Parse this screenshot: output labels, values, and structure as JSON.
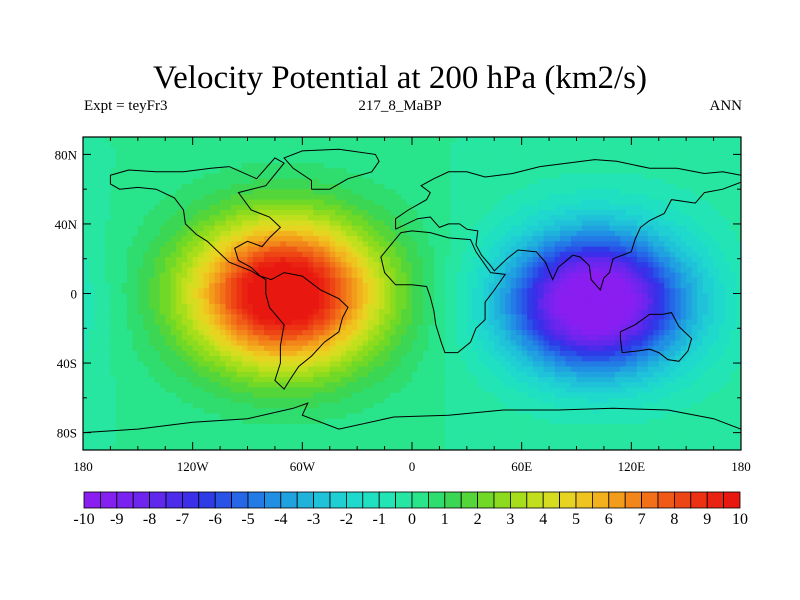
{
  "chart_data": {
    "type": "heatmap",
    "title": "Velocity Potential at 200 hPa (km2/s)",
    "subtitle_left": "Expt = teyFr3",
    "subtitle_center": "217_8_MaBP",
    "subtitle_right": "ANN",
    "x_range": [
      -180,
      180
    ],
    "y_range": [
      -90,
      90
    ],
    "x_ticks": [
      {
        "value": -180,
        "label": "180"
      },
      {
        "value": -120,
        "label": "120W"
      },
      {
        "value": -60,
        "label": "60W"
      },
      {
        "value": 0,
        "label": "0"
      },
      {
        "value": 60,
        "label": "60E"
      },
      {
        "value": 120,
        "label": "120E"
      },
      {
        "value": 180,
        "label": "180"
      }
    ],
    "y_ticks": [
      {
        "value": 80,
        "label": "80N"
      },
      {
        "value": 40,
        "label": "40N"
      },
      {
        "value": 0,
        "label": "0"
      },
      {
        "value": -40,
        "label": "40S"
      },
      {
        "value": -80,
        "label": "80S"
      }
    ],
    "field_centers": [
      {
        "name": "maximum",
        "lon": -70,
        "lat": 0,
        "value": 10.5
      },
      {
        "name": "minimum",
        "lon": 100,
        "lat": -5,
        "value": -10.5
      }
    ],
    "colorbar": {
      "levels": [
        -10,
        -9.5,
        -9,
        -8.5,
        -8,
        -7.5,
        -7,
        -6.5,
        -6,
        -5.5,
        -5,
        -4.5,
        -4,
        -3.5,
        -3,
        -2.5,
        -2,
        -1.5,
        -1,
        -0.5,
        0,
        0.5,
        1,
        1.5,
        2,
        2.5,
        3,
        3.5,
        4,
        4.5,
        5,
        5.5,
        6,
        6.5,
        7,
        7.5,
        8,
        8.5,
        9,
        9.5,
        10
      ],
      "label_values": [
        -10,
        -9,
        -8,
        -7,
        -6,
        -5,
        -4,
        -3,
        -2,
        -1,
        0,
        1,
        2,
        3,
        4,
        5,
        6,
        7,
        8,
        9,
        10
      ],
      "labels": [
        "-10",
        "-9",
        "-8",
        "-7",
        "-6",
        "-5",
        "-4",
        "-3",
        "-2",
        "-1",
        "0",
        "1",
        "2",
        "3",
        "4",
        "5",
        "6",
        "7",
        "8",
        "9",
        "10"
      ],
      "colors": [
        "#8a1df0",
        "#8420f0",
        "#7a22ef",
        "#6e26ee",
        "#5f28ec",
        "#4c2beb",
        "#3b2fea",
        "#2e3ce8",
        "#2852e8",
        "#2667e8",
        "#237be6",
        "#2190e4",
        "#20a2e0",
        "#1fb3dc",
        "#1fc2d8",
        "#1fcfd3",
        "#1fd9cc",
        "#20e0c2",
        "#22e4b4",
        "#26e6a1",
        "#29e48a",
        "#2fdd6e",
        "#3ad654",
        "#54d63b",
        "#70d827",
        "#8cdb1e",
        "#a7de1c",
        "#c1df1d",
        "#d6dd20",
        "#e7d421",
        "#efc41f",
        "#f2b11d",
        "#f39c1b",
        "#f3861a",
        "#f27018",
        "#f05a17",
        "#ee4515",
        "#ec3213",
        "#ea2211",
        "#e81810"
      ]
    },
    "continent_outlines": [
      {
        "name": "americas",
        "points": [
          [
            -100,
            73
          ],
          [
            -85,
            66
          ],
          [
            -75,
            78
          ],
          [
            -70,
            75
          ],
          [
            -80,
            62
          ],
          [
            -95,
            58
          ],
          [
            -88,
            48
          ],
          [
            -78,
            44
          ],
          [
            -72,
            38
          ],
          [
            -78,
            32
          ],
          [
            -82,
            27
          ],
          [
            -90,
            30
          ],
          [
            -97,
            26
          ],
          [
            -95,
            19
          ],
          [
            -88,
            15
          ],
          [
            -83,
            10
          ],
          [
            -77,
            8
          ],
          [
            -70,
            12
          ],
          [
            -60,
            10
          ],
          [
            -50,
            2
          ],
          [
            -40,
            -3
          ],
          [
            -35,
            -8
          ],
          [
            -38,
            -14
          ],
          [
            -40,
            -22
          ],
          [
            -48,
            -28
          ],
          [
            -55,
            -36
          ],
          [
            -62,
            -42
          ],
          [
            -67,
            -50
          ],
          [
            -70,
            -55
          ],
          [
            -75,
            -50
          ],
          [
            -72,
            -40
          ],
          [
            -72,
            -30
          ],
          [
            -70,
            -18
          ],
          [
            -78,
            -8
          ],
          [
            -80,
            0
          ],
          [
            -80,
            8
          ],
          [
            -88,
            13
          ],
          [
            -100,
            18
          ],
          [
            -106,
            24
          ],
          [
            -112,
            30
          ],
          [
            -118,
            34
          ],
          [
            -124,
            40
          ],
          [
            -125,
            48
          ],
          [
            -130,
            55
          ],
          [
            -140,
            60
          ],
          [
            -150,
            61
          ],
          [
            -160,
            60
          ],
          [
            -165,
            63
          ],
          [
            -165,
            68
          ],
          [
            -155,
            71
          ],
          [
            -140,
            70
          ],
          [
            -125,
            70
          ],
          [
            -110,
            72
          ],
          [
            -100,
            73
          ]
        ]
      },
      {
        "name": "greenland",
        "points": [
          [
            -55,
            60
          ],
          [
            -45,
            60
          ],
          [
            -35,
            66
          ],
          [
            -22,
            70
          ],
          [
            -18,
            76
          ],
          [
            -20,
            80
          ],
          [
            -40,
            83
          ],
          [
            -60,
            82
          ],
          [
            -70,
            78
          ],
          [
            -65,
            72
          ],
          [
            -55,
            65
          ],
          [
            -55,
            60
          ]
        ]
      },
      {
        "name": "africa",
        "points": [
          [
            -17,
            21
          ],
          [
            -15,
            12
          ],
          [
            -9,
            5
          ],
          [
            0,
            5
          ],
          [
            8,
            4
          ],
          [
            10,
            -2
          ],
          [
            12,
            -10
          ],
          [
            13,
            -18
          ],
          [
            16,
            -28
          ],
          [
            18,
            -34
          ],
          [
            25,
            -34
          ],
          [
            32,
            -28
          ],
          [
            35,
            -20
          ],
          [
            40,
            -15
          ],
          [
            40,
            -5
          ],
          [
            45,
            2
          ],
          [
            51,
            11
          ],
          [
            43,
            12
          ],
          [
            35,
            24
          ],
          [
            32,
            31
          ],
          [
            20,
            32
          ],
          [
            10,
            35
          ],
          [
            0,
            36
          ],
          [
            -6,
            35
          ],
          [
            -10,
            30
          ],
          [
            -17,
            21
          ]
        ]
      },
      {
        "name": "eurasia",
        "points": [
          [
            -9,
            37
          ],
          [
            -9,
            43
          ],
          [
            -2,
            48
          ],
          [
            3,
            51
          ],
          [
            8,
            54
          ],
          [
            10,
            58
          ],
          [
            5,
            62
          ],
          [
            12,
            66
          ],
          [
            20,
            70
          ],
          [
            30,
            70
          ],
          [
            40,
            67
          ],
          [
            55,
            69
          ],
          [
            70,
            73
          ],
          [
            85,
            75
          ],
          [
            100,
            77
          ],
          [
            112,
            76
          ],
          [
            130,
            72
          ],
          [
            145,
            72
          ],
          [
            160,
            69
          ],
          [
            170,
            70
          ],
          [
            180,
            68
          ],
          [
            180,
            64
          ],
          [
            170,
            60
          ],
          [
            160,
            58
          ],
          [
            155,
            52
          ],
          [
            142,
            54
          ],
          [
            138,
            46
          ],
          [
            130,
            42
          ],
          [
            125,
            38
          ],
          [
            122,
            31
          ],
          [
            120,
            24
          ],
          [
            110,
            20
          ],
          [
            108,
            12
          ],
          [
            105,
            9
          ],
          [
            103,
            2
          ],
          [
            98,
            8
          ],
          [
            97,
            16
          ],
          [
            92,
            21
          ],
          [
            88,
            22
          ],
          [
            80,
            15
          ],
          [
            77,
            8
          ],
          [
            73,
            18
          ],
          [
            68,
            24
          ],
          [
            58,
            25
          ],
          [
            52,
            20
          ],
          [
            45,
            13
          ],
          [
            43,
            16
          ],
          [
            38,
            22
          ],
          [
            35,
            28
          ],
          [
            36,
            36
          ],
          [
            30,
            37
          ],
          [
            26,
            40
          ],
          [
            20,
            40
          ],
          [
            15,
            38
          ],
          [
            10,
            44
          ],
          [
            3,
            43
          ],
          [
            -9,
            37
          ]
        ]
      },
      {
        "name": "australia",
        "points": [
          [
            114,
            -22
          ],
          [
            122,
            -18
          ],
          [
            130,
            -12
          ],
          [
            137,
            -12
          ],
          [
            142,
            -11
          ],
          [
            146,
            -19
          ],
          [
            153,
            -26
          ],
          [
            151,
            -33
          ],
          [
            146,
            -39
          ],
          [
            140,
            -38
          ],
          [
            135,
            -34
          ],
          [
            130,
            -32
          ],
          [
            124,
            -33
          ],
          [
            115,
            -34
          ],
          [
            114,
            -26
          ],
          [
            114,
            -22
          ]
        ]
      },
      {
        "name": "antarctica",
        "points": [
          [
            -180,
            -80
          ],
          [
            -150,
            -78
          ],
          [
            -120,
            -74
          ],
          [
            -90,
            -72
          ],
          [
            -65,
            -66
          ],
          [
            -57,
            -63
          ],
          [
            -60,
            -70
          ],
          [
            -40,
            -78
          ],
          [
            -10,
            -71
          ],
          [
            20,
            -70
          ],
          [
            50,
            -67
          ],
          [
            80,
            -67
          ],
          [
            110,
            -66
          ],
          [
            140,
            -67
          ],
          [
            165,
            -72
          ],
          [
            180,
            -78
          ]
        ]
      }
    ]
  }
}
